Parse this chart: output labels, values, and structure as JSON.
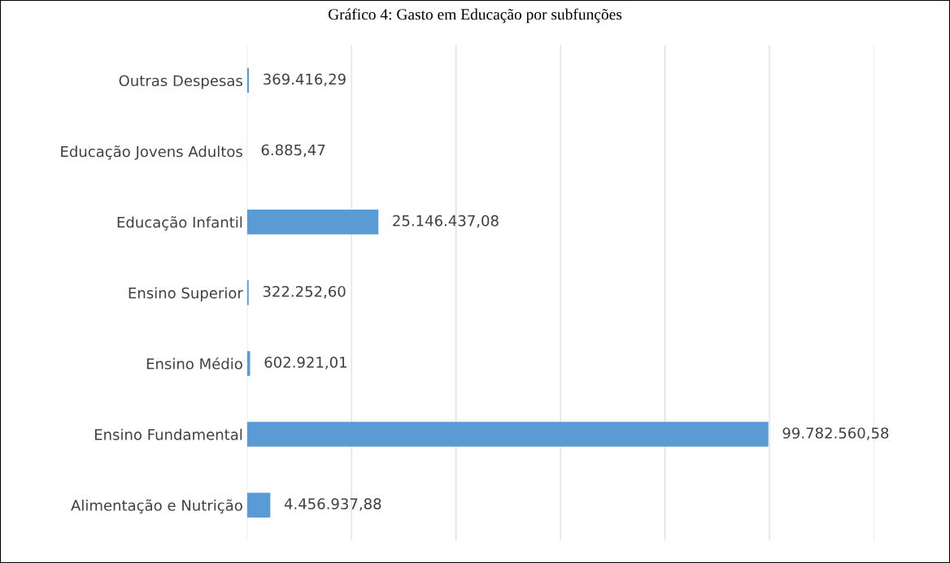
{
  "chart_data": {
    "type": "bar",
    "orientation": "horizontal",
    "title": "Gráfico 4: Gasto em Educação por subfunções",
    "categories": [
      "Outras Despesas",
      "Educação Jovens Adultos",
      "Educação Infantil",
      "Ensino Superior",
      "Ensino Médio",
      "Ensino Fundamental",
      "Alimentação e Nutrição"
    ],
    "values": [
      369416.29,
      6885.47,
      25146437.08,
      322252.6,
      602921.01,
      99782560.58,
      4456937.88
    ],
    "value_labels": [
      "369.416,29",
      "6.885,47",
      "25.146.437,08",
      "322.252,60",
      "602.921,01",
      "99.782.560,58",
      "4.456.937,88"
    ],
    "color": "#5b9bd5",
    "xlim": [
      0,
      120000000
    ],
    "xticks": [
      {
        "value": 0,
        "label": null
      },
      {
        "value": 20000000,
        "label": null
      },
      {
        "value": 40000000,
        "label": null
      },
      {
        "value": 60000000,
        "label": null
      },
      {
        "value": 80000000,
        "label": null
      },
      {
        "value": 100000000,
        "label": null
      },
      {
        "value": 120000000,
        "label": null
      }
    ],
    "grid": "x",
    "legend": false
  }
}
